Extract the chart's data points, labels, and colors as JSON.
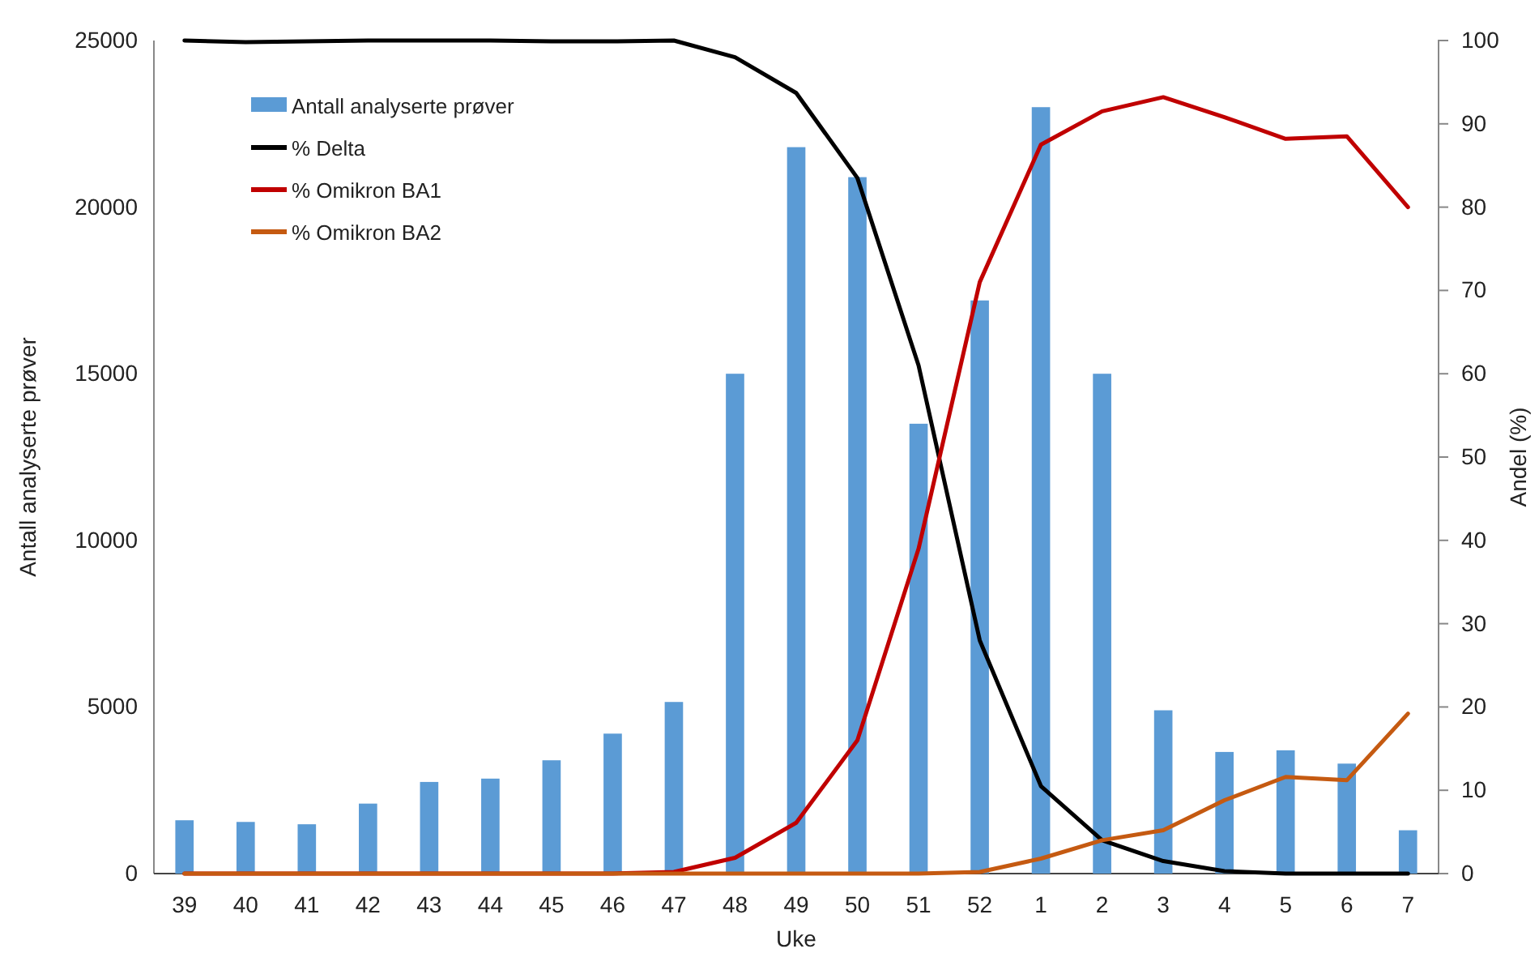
{
  "chart_data": {
    "type": "bar",
    "xlabel": "Uke",
    "ylabel": "Antall analyserte prøver",
    "y2label": "Andel (%)",
    "categories": [
      "39",
      "40",
      "41",
      "42",
      "43",
      "44",
      "45",
      "46",
      "47",
      "48",
      "49",
      "50",
      "51",
      "52",
      "1",
      "2",
      "3",
      "4",
      "5",
      "6",
      "7"
    ],
    "series": [
      {
        "name": "Antall analyserte prøver",
        "color": "#5b9bd5",
        "values": [
          1600,
          1550,
          1480,
          2100,
          2750,
          2850,
          3400,
          4200,
          5150,
          15000,
          21800,
          20900,
          13500,
          17200,
          23000,
          15000,
          4900,
          3650,
          3700,
          3300,
          1300
        ]
      },
      {
        "name": "% Delta",
        "type": "line",
        "axis": "y2",
        "color": "#000000",
        "values": [
          100,
          99.8,
          99.9,
          100,
          100,
          100,
          99.9,
          99.9,
          100,
          98,
          93.7,
          83.5,
          61,
          28,
          10.5,
          4,
          1.5,
          0.3,
          0,
          0,
          0
        ]
      },
      {
        "name": "% Omikron BA1",
        "type": "line",
        "axis": "y2",
        "color": "#c00000",
        "values": [
          0,
          0,
          0,
          0,
          0,
          0,
          0,
          0,
          0.2,
          1.9,
          6.1,
          16,
          39,
          71,
          87.5,
          91.5,
          93.2,
          90.8,
          88.2,
          88.5,
          80
        ]
      },
      {
        "name": "% Omikron BA2",
        "type": "line",
        "axis": "y2",
        "color": "#c55a11",
        "values": [
          0,
          0,
          0,
          0,
          0,
          0,
          0,
          0,
          0,
          0,
          0,
          0,
          0,
          0.2,
          1.8,
          4,
          5.2,
          8.8,
          11.6,
          11.2,
          19.2
        ]
      }
    ],
    "ylim": [
      0,
      25000
    ],
    "yticks": [
      0,
      5000,
      10000,
      15000,
      20000,
      25000
    ],
    "y2lim": [
      0,
      100
    ],
    "y2ticks": [
      0,
      10,
      20,
      30,
      40,
      50,
      60,
      70,
      80,
      90,
      100
    ],
    "grid": false,
    "legend": "top left",
    "marker": "none",
    "line_style": "solid"
  }
}
